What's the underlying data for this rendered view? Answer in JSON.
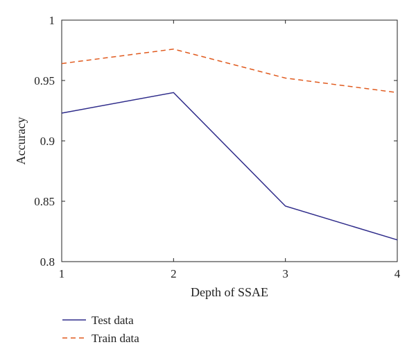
{
  "chart_data": {
    "type": "line",
    "x": [
      1,
      2,
      3,
      4
    ],
    "xticks": [
      "1",
      "2",
      "3",
      "4"
    ],
    "yticks": [
      "0.8",
      "0.85",
      "0.9",
      "0.95",
      "1"
    ],
    "xlabel": "Depth of SSAE",
    "ylabel": "Accuracy",
    "xlim": [
      1,
      4
    ],
    "ylim": [
      0.8,
      1.0
    ],
    "grid": false,
    "legend_placement": "bottom-left, below plot",
    "series": [
      {
        "name": "Test data",
        "values": [
          0.923,
          0.94,
          0.846,
          0.818
        ],
        "color": "#2e2b8a",
        "style": "solid"
      },
      {
        "name": "Train data",
        "values": [
          0.964,
          0.976,
          0.952,
          0.94
        ],
        "color": "#e05a1e",
        "style": "dashed"
      }
    ]
  }
}
